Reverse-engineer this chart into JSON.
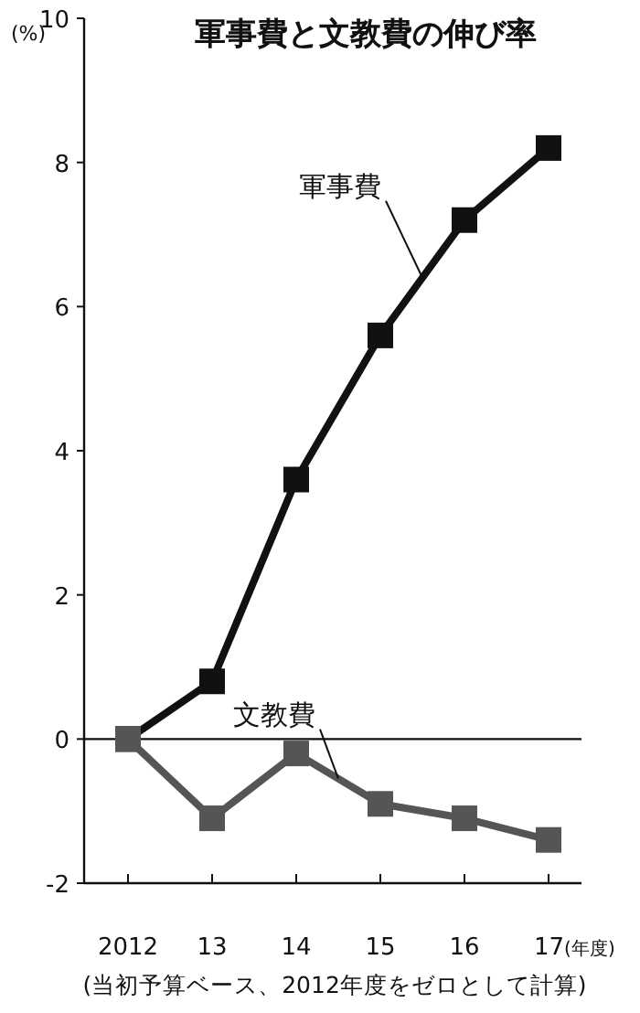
{
  "chart_data": {
    "type": "line",
    "title": "軍事費と文教費の伸び率",
    "ylabel": "(%)",
    "xlabel": "(年度)",
    "categories": [
      "2012",
      "13",
      "14",
      "15",
      "16",
      "17"
    ],
    "series": [
      {
        "name": "軍事費",
        "color": "#111111",
        "values": [
          0,
          0.8,
          3.6,
          5.6,
          7.2,
          8.2
        ]
      },
      {
        "name": "文教費",
        "color": "#555555",
        "values": [
          0,
          -1.1,
          -0.2,
          -0.9,
          -1.1,
          -1.4
        ]
      }
    ],
    "ylim": [
      -2,
      10
    ],
    "yticks": [
      -2,
      0,
      2,
      4,
      6,
      8,
      10
    ],
    "marker": "square",
    "line_style": "solid",
    "legend": false,
    "grid": false,
    "ref_lines": [
      {
        "axis": "y",
        "value": 0
      }
    ],
    "annotations": [
      "(当初予算ベース、2012年度をゼロとして計算)"
    ]
  }
}
